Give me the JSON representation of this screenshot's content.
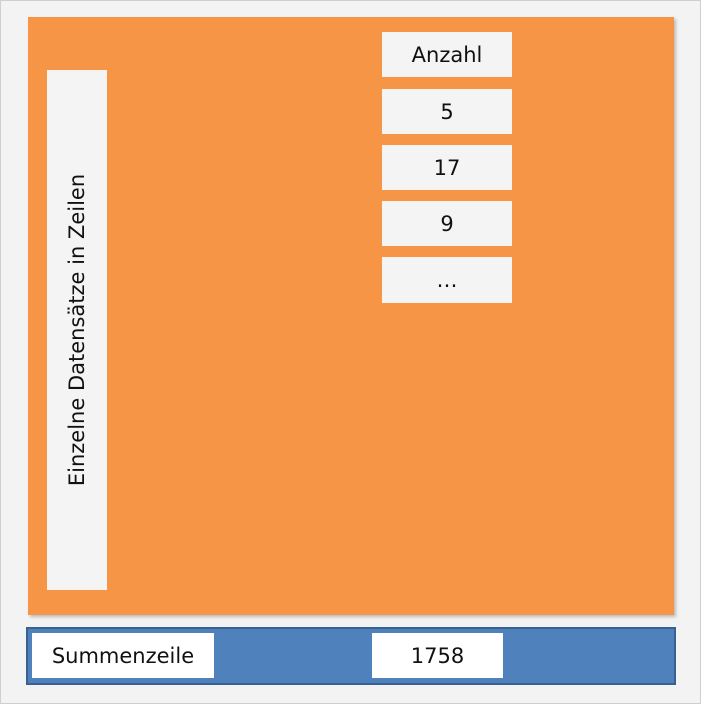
{
  "rows_label": "Einzelne Datensätze in Zeilen",
  "column": {
    "header": "Anzahl",
    "cells": [
      5,
      17,
      9,
      "…"
    ]
  },
  "summary": {
    "label": "Summenzeile",
    "value": 1758
  }
}
